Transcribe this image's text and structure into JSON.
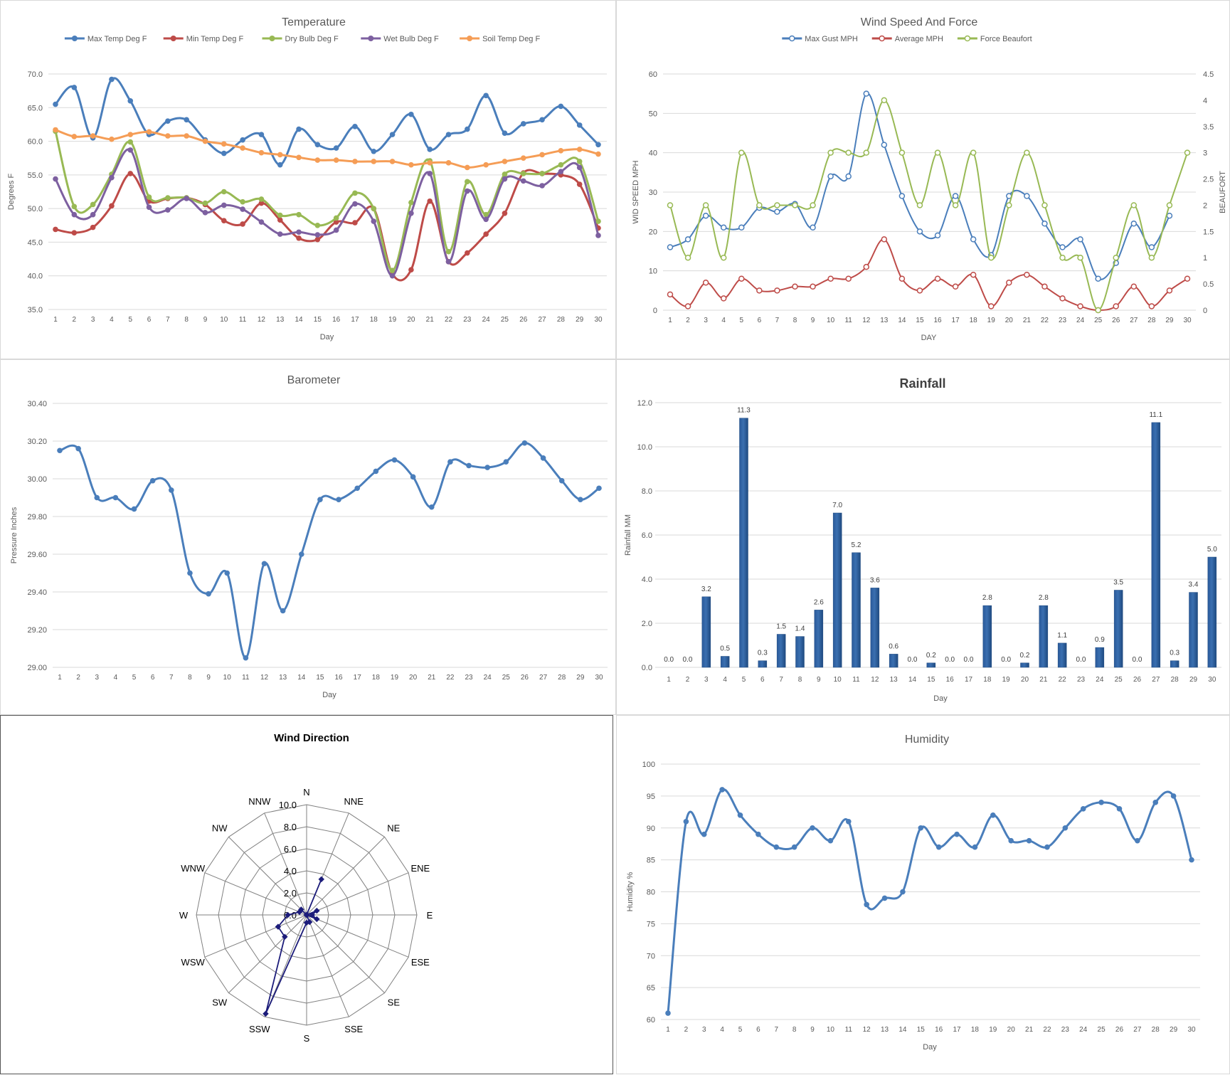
{
  "chart_data": [
    {
      "type": "line",
      "title": "Temperature",
      "xlabel": "Day",
      "ylabel": "Degrees F",
      "ylim": [
        35,
        70
      ],
      "yticks": [
        "35.0",
        "40.0",
        "45.0",
        "50.0",
        "55.0",
        "60.0",
        "65.0",
        "70.0"
      ],
      "legend_position": "top",
      "x": [
        1,
        2,
        3,
        4,
        5,
        6,
        7,
        8,
        9,
        10,
        11,
        12,
        13,
        14,
        15,
        16,
        17,
        18,
        19,
        20,
        21,
        22,
        23,
        24,
        25,
        26,
        27,
        28,
        29,
        30
      ],
      "series": [
        {
          "name": "Max Temp Deg F",
          "color": "#4a7ebb",
          "values": [
            65.5,
            68.0,
            60.5,
            69.2,
            66.0,
            61.0,
            63.0,
            63.2,
            60.2,
            58.2,
            60.2,
            61.0,
            56.5,
            61.8,
            59.5,
            59.0,
            62.2,
            58.5,
            61.0,
            64.0,
            58.8,
            61.0,
            61.8,
            66.8,
            61.2,
            62.6,
            63.2,
            65.2,
            62.4,
            59.5
          ]
        },
        {
          "name": "Min Temp Deg F",
          "color": "#be4b48",
          "values": [
            46.9,
            46.4,
            47.2,
            50.4,
            55.2,
            51.1,
            51.5,
            51.6,
            50.6,
            48.2,
            47.7,
            50.8,
            48.3,
            45.6,
            45.4,
            48.0,
            47.9,
            50.0,
            40.3,
            40.9,
            51.1,
            42.1,
            43.4,
            46.2,
            49.3,
            55.3,
            55.2,
            55.0,
            53.6,
            47.1
          ]
        },
        {
          "name": "Dry Bulb Deg F",
          "color": "#98b954",
          "values": [
            61.5,
            50.3,
            50.6,
            55.1,
            59.9,
            51.7,
            51.6,
            51.6,
            50.8,
            52.5,
            51.0,
            51.4,
            49.0,
            49.1,
            47.5,
            48.6,
            52.3,
            50.0,
            40.8,
            50.9,
            57.1,
            43.6,
            54.0,
            49.1,
            55.1,
            55.2,
            55.2,
            56.5,
            57.0,
            48.1
          ]
        },
        {
          "name": "Wet Bulb Deg F",
          "color": "#7d60a0",
          "values": [
            54.4,
            49.1,
            49.1,
            54.6,
            58.7,
            50.2,
            49.8,
            51.5,
            49.4,
            50.5,
            49.9,
            48.0,
            46.2,
            46.5,
            46.1,
            46.8,
            50.7,
            48.1,
            40.0,
            49.3,
            55.2,
            42.1,
            52.6,
            48.4,
            54.4,
            54.1,
            53.4,
            55.5,
            56.1,
            46.0
          ]
        },
        {
          "name": "Soil Temp Deg F",
          "color": "#f59d56",
          "values": [
            61.7,
            60.7,
            60.8,
            60.3,
            61.0,
            61.4,
            60.8,
            60.8,
            60.0,
            59.6,
            59.0,
            58.3,
            58.0,
            57.6,
            57.2,
            57.2,
            57.0,
            57.0,
            57.0,
            56.5,
            56.8,
            56.8,
            56.1,
            56.5,
            57.0,
            57.5,
            58.0,
            58.6,
            58.8,
            58.1
          ]
        }
      ]
    },
    {
      "type": "line",
      "title": "Wind Speed And Force",
      "xlabel": "DAY",
      "ylabel": "WID SPEED MPH",
      "y2label": "BEAUFORT",
      "ylim": [
        0,
        60
      ],
      "y2lim": [
        0,
        4.5
      ],
      "yticks": [
        "0",
        "10",
        "20",
        "30",
        "40",
        "50",
        "60"
      ],
      "y2ticks": [
        "0",
        "0.5",
        "1",
        "1.5",
        "2",
        "2.5",
        "3",
        "3.5",
        "4",
        "4.5"
      ],
      "legend_position": "top",
      "x": [
        1,
        2,
        3,
        4,
        5,
        6,
        7,
        8,
        9,
        10,
        11,
        12,
        13,
        14,
        15,
        16,
        17,
        18,
        19,
        20,
        21,
        22,
        23,
        24,
        25,
        26,
        27,
        28,
        29,
        30
      ],
      "series": [
        {
          "name": "Max Gust MPH",
          "color": "#4a7ebb",
          "axis": "left",
          "values": [
            16,
            18,
            24,
            21,
            21,
            26,
            25,
            27,
            21,
            34,
            34,
            55,
            42,
            29,
            20,
            19,
            29,
            18,
            14,
            29,
            29,
            22,
            16,
            18,
            8,
            12,
            22,
            16,
            24,
            null
          ]
        },
        {
          "name": "Average MPH",
          "color": "#be4b48",
          "axis": "left",
          "values": [
            4,
            1,
            7,
            3,
            8,
            5,
            5,
            6,
            6,
            8,
            8,
            11,
            18,
            8,
            5,
            8,
            6,
            9,
            1,
            7,
            9,
            6,
            3,
            1,
            0,
            1,
            6,
            1,
            5,
            8
          ]
        },
        {
          "name": "Force Beaufort",
          "color": "#98b954",
          "axis": "right",
          "values": [
            2,
            1,
            2,
            1,
            3,
            2,
            2,
            2,
            2,
            3,
            3,
            3,
            4,
            3,
            2,
            3,
            2,
            3,
            1,
            2,
            3,
            2,
            1,
            1,
            0,
            1,
            2,
            1,
            2,
            3
          ]
        }
      ]
    },
    {
      "type": "line",
      "title": "Barometer",
      "xlabel": "Day",
      "ylabel": "Pressure Inches",
      "ylim": [
        29.0,
        30.4
      ],
      "yticks": [
        "29.00",
        "29.20",
        "29.40",
        "29.60",
        "29.80",
        "30.00",
        "30.20",
        "30.40"
      ],
      "x": [
        1,
        2,
        3,
        4,
        5,
        6,
        7,
        8,
        9,
        10,
        11,
        12,
        13,
        14,
        15,
        16,
        17,
        18,
        19,
        20,
        21,
        22,
        23,
        24,
        25,
        26,
        27,
        28,
        29,
        30
      ],
      "series": [
        {
          "color": "#4a7ebb",
          "values": [
            30.15,
            30.16,
            29.9,
            29.9,
            29.84,
            29.99,
            29.94,
            29.5,
            29.39,
            29.5,
            29.05,
            29.55,
            29.3,
            29.6,
            29.89,
            29.89,
            29.95,
            30.04,
            30.1,
            30.01,
            29.85,
            30.09,
            30.07,
            30.06,
            30.09,
            30.19,
            30.11,
            29.99,
            29.89,
            29.95
          ]
        }
      ]
    },
    {
      "type": "bar",
      "title": "Rainfall",
      "xlabel": "Day",
      "ylabel": "Rainfall MM",
      "ylim": [
        0,
        12
      ],
      "yticks": [
        "0.0",
        "2.0",
        "4.0",
        "6.0",
        "8.0",
        "10.0",
        "12.0"
      ],
      "categories": [
        "1",
        "2",
        "3",
        "4",
        "5",
        "6",
        "7",
        "8",
        "9",
        "10",
        "11",
        "12",
        "13",
        "14",
        "15",
        "16",
        "17",
        "18",
        "19",
        "20",
        "21",
        "22",
        "23",
        "24",
        "25",
        "26",
        "27",
        "28",
        "29",
        "30"
      ],
      "values": [
        0.0,
        0.0,
        3.2,
        0.5,
        11.3,
        0.3,
        1.5,
        1.4,
        2.6,
        7.0,
        5.2,
        3.6,
        0.6,
        0.0,
        0.2,
        0.0,
        0.0,
        2.8,
        0.0,
        0.2,
        2.8,
        1.1,
        0.0,
        0.9,
        3.5,
        0.0,
        11.1,
        0.3,
        3.4,
        5.0
      ],
      "labels": [
        "0.0",
        "0.0",
        "3.2",
        "0.5",
        "11.3",
        "0.3",
        "1.5",
        "1.4",
        "2.6",
        "7.0",
        "5.2",
        "3.6",
        "0.6",
        "0.0",
        "0.2",
        "0.0",
        "0.0",
        "2.8",
        "0.0",
        "0.2",
        "2.8",
        "1.1",
        "0.0",
        "0.9",
        "3.5",
        "0.0",
        "11.1",
        "0.3",
        "3.4",
        "5.0"
      ],
      "color": "#3a6fb0"
    },
    {
      "type": "radar",
      "title": "Wind Direction",
      "rlim": [
        0,
        10
      ],
      "rticks": [
        "0.0",
        "2.0",
        "4.0",
        "6.0",
        "8.0",
        "10.0"
      ],
      "categories": [
        "N",
        "NNE",
        "NE",
        "ENE",
        "E",
        "ESE",
        "SE",
        "SSE",
        "S",
        "SSW",
        "SW",
        "WSW",
        "W",
        "WNW",
        "NW",
        "NNW"
      ],
      "values": [
        0,
        3.5,
        0,
        1.0,
        0.5,
        1.0,
        0,
        0.7,
        0.7,
        9.7,
        2.8,
        2.8,
        1.7,
        0.7,
        0.7,
        0
      ],
      "color": "#1c1c7a"
    },
    {
      "type": "line",
      "title": "Humidity",
      "xlabel": "Day",
      "ylabel": "Humidity %",
      "ylim": [
        60,
        100
      ],
      "yticks": [
        "60",
        "65",
        "70",
        "75",
        "80",
        "85",
        "90",
        "95",
        "100"
      ],
      "x": [
        1,
        2,
        3,
        4,
        5,
        6,
        7,
        8,
        9,
        10,
        11,
        12,
        13,
        14,
        15,
        16,
        17,
        18,
        19,
        20,
        21,
        22,
        23,
        24,
        25,
        26,
        27,
        28,
        29,
        30
      ],
      "series": [
        {
          "color": "#4a7ebb",
          "values": [
            61,
            91,
            89,
            96,
            92,
            89,
            87,
            87,
            90,
            88,
            91,
            78,
            79,
            80,
            90,
            87,
            89,
            87,
            92,
            88,
            88,
            87,
            90,
            93,
            94,
            93,
            88,
            94,
            95,
            85
          ]
        }
      ]
    }
  ]
}
